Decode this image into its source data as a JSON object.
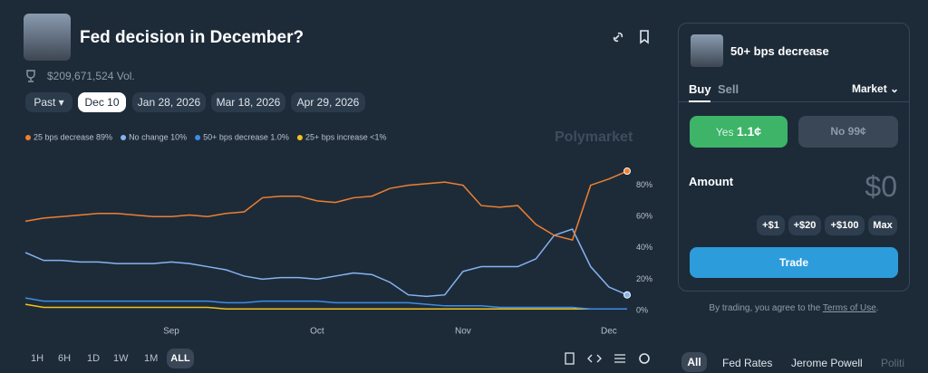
{
  "header": {
    "title": "Fed decision in December?",
    "volume": "$209,671,524 Vol."
  },
  "date_tabs": [
    "Past",
    "Dec 10",
    "Jan 28, 2026",
    "Mar 18, 2026",
    "Apr 29, 2026"
  ],
  "watermark": "Polymarket",
  "chart_data": {
    "type": "line",
    "categories": [
      null,
      null,
      null,
      null,
      null,
      null,
      null,
      null,
      "Sep",
      null,
      null,
      null,
      null,
      null,
      null,
      null,
      "Oct",
      null,
      null,
      null,
      null,
      null,
      null,
      null,
      "Nov",
      null,
      null,
      null,
      null,
      null,
      null,
      null,
      "Dec",
      null
    ],
    "series": [
      {
        "name": "25 bps decrease 89%",
        "color": "#ef7f31",
        "values": [
          57,
          59,
          60,
          61,
          62,
          62,
          61,
          60,
          60,
          61,
          60,
          62,
          63,
          72,
          73,
          73,
          70,
          69,
          72,
          73,
          78,
          80,
          81,
          82,
          80,
          67,
          66,
          67,
          55,
          48,
          45,
          80,
          84,
          89
        ]
      },
      {
        "name": "No change 10%",
        "color": "#86b4f0",
        "values": [
          37,
          32,
          32,
          31,
          31,
          30,
          30,
          30,
          31,
          30,
          28,
          26,
          22,
          20,
          21,
          21,
          20,
          22,
          24,
          23,
          18,
          10,
          9,
          10,
          25,
          28,
          28,
          28,
          33,
          48,
          52,
          28,
          15,
          10
        ]
      },
      {
        "name": "50+ bps decrease 1.0%",
        "color": "#3b8ee8",
        "values": [
          8,
          6,
          6,
          6,
          6,
          6,
          6,
          6,
          6,
          6,
          6,
          5,
          5,
          6,
          6,
          6,
          6,
          5,
          5,
          5,
          5,
          5,
          4,
          3,
          3,
          3,
          2,
          2,
          2,
          2,
          2,
          1,
          1,
          1
        ]
      },
      {
        "name": "25+ bps increase <1%",
        "color": "#f2c21b",
        "values": [
          4,
          2,
          2,
          2,
          2,
          2,
          2,
          2,
          2,
          2,
          2,
          1,
          1,
          1,
          1,
          1,
          1,
          1,
          1,
          1,
          1,
          1,
          1,
          1,
          1,
          1,
          1,
          1,
          1,
          1,
          1,
          1,
          1,
          1
        ]
      }
    ],
    "ylim": [
      0,
      100
    ],
    "yticks": [
      {
        "value": 0,
        "label": "0%"
      },
      {
        "value": 20,
        "label": "20%"
      },
      {
        "value": 40,
        "label": "40%"
      },
      {
        "value": 60,
        "label": "60%"
      },
      {
        "value": 80,
        "label": "80%"
      }
    ],
    "grid": false
  },
  "range_buttons": [
    "1H",
    "6H",
    "1D",
    "1W",
    "1M",
    "ALL"
  ],
  "trade_panel": {
    "outcome": "50+ bps decrease",
    "tabs": [
      "Buy",
      "Sell"
    ],
    "order_type": "Market",
    "yes": "Yes",
    "yes_price": "1.1¢",
    "no": "No 99¢",
    "amount_label": "Amount",
    "amount": "$0",
    "increments": [
      "+$1",
      "+$20",
      "+$100",
      "Max"
    ],
    "trade": "Trade",
    "disclaimer": "By trading, you agree to the",
    "terms": "Terms of Use",
    "period": "."
  },
  "tags": [
    "All",
    "Fed Rates",
    "Jerome Powell",
    "Politi"
  ]
}
